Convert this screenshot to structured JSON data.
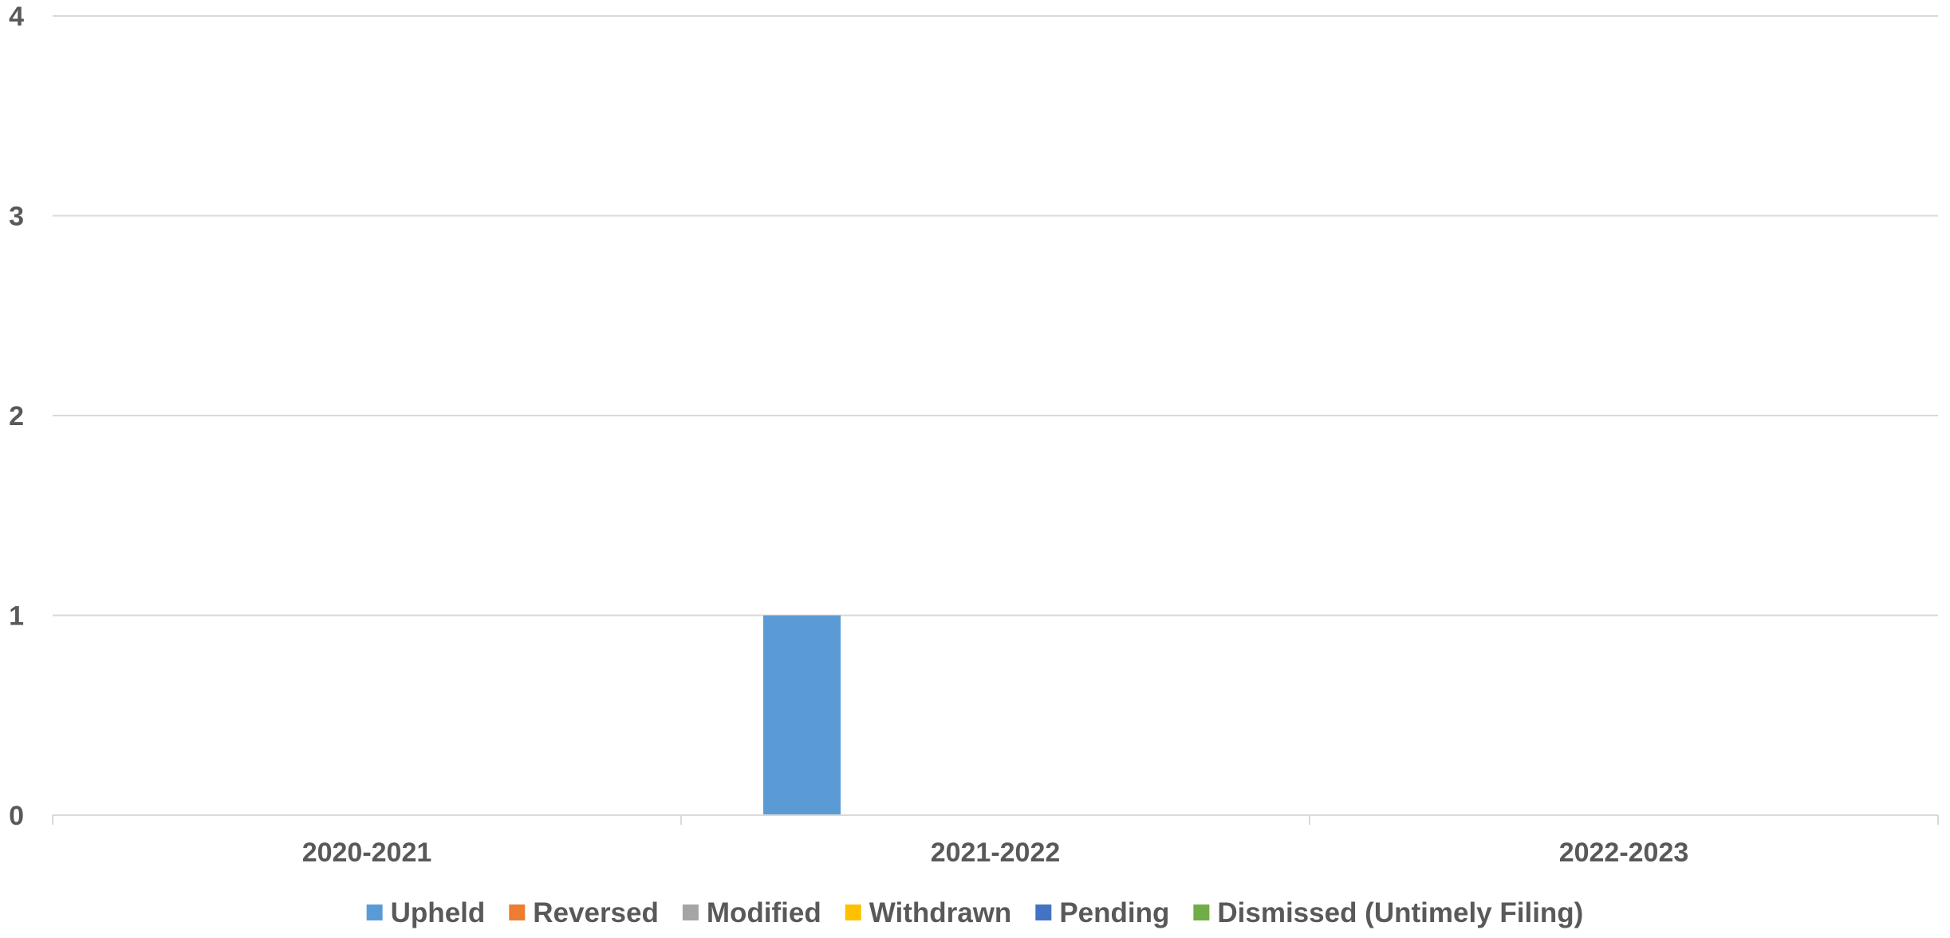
{
  "chart_data": {
    "type": "bar",
    "title": "",
    "xlabel": "",
    "ylabel": "",
    "categories": [
      "2020-2021",
      "2021-2022",
      "2022-2023"
    ],
    "ylim": [
      0,
      4
    ],
    "yticks": [
      0,
      1,
      2,
      3,
      4
    ],
    "grid": true,
    "legend_position": "bottom",
    "series": [
      {
        "name": "Upheld",
        "color": "#5B9BD5",
        "values": [
          0,
          1,
          0
        ]
      },
      {
        "name": "Reversed",
        "color": "#ED7D31",
        "values": [
          0,
          0,
          0
        ]
      },
      {
        "name": "Modified",
        "color": "#A5A5A5",
        "values": [
          0,
          0,
          0
        ]
      },
      {
        "name": "Withdrawn",
        "color": "#FFC000",
        "values": [
          0,
          0,
          0
        ]
      },
      {
        "name": "Pending",
        "color": "#4472C4",
        "values": [
          0,
          0,
          0
        ]
      },
      {
        "name": "Dismissed (Untimely Filing)",
        "color": "#70AD47",
        "values": [
          0,
          0,
          0
        ]
      }
    ]
  }
}
